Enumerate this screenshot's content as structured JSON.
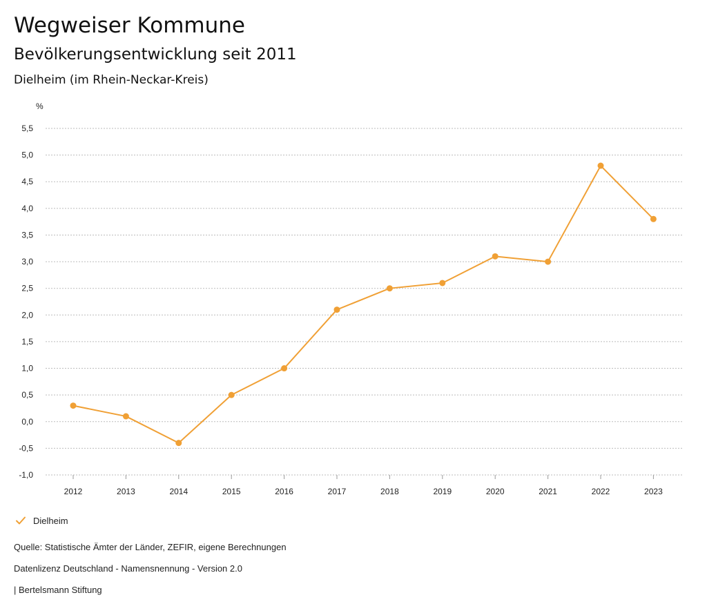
{
  "header": {
    "title": "Wegweiser Kommune",
    "subtitle": "Bevölkerungsentwicklung seit 2011",
    "region": "Dielheim (im Rhein-Neckar-Kreis)"
  },
  "colors": {
    "series": "#f0a035",
    "grid": "#bbbbbb",
    "axis": "#999999"
  },
  "chart_data": {
    "type": "line",
    "title": "Bevölkerungsentwicklung seit 2011",
    "ylabel": "%",
    "xlabel": "",
    "ylim": [
      -1.0,
      5.5
    ],
    "yticks": [
      -1.0,
      -0.5,
      0.0,
      0.5,
      1.0,
      1.5,
      2.0,
      2.5,
      3.0,
      3.5,
      4.0,
      4.5,
      5.0,
      5.5
    ],
    "ytick_labels": [
      "-1,0",
      "-0,5",
      "0,0",
      "0,5",
      "1,0",
      "1,5",
      "2,0",
      "2,5",
      "3,0",
      "3,5",
      "4,0",
      "4,5",
      "5,0",
      "5,5"
    ],
    "categories": [
      "2012",
      "2013",
      "2014",
      "2015",
      "2016",
      "2017",
      "2018",
      "2019",
      "2020",
      "2021",
      "2022",
      "2023"
    ],
    "series": [
      {
        "name": "Dielheim",
        "values": [
          0.3,
          0.1,
          -0.4,
          0.5,
          1.0,
          2.1,
          2.5,
          2.6,
          3.1,
          3.0,
          4.8,
          3.8
        ]
      }
    ],
    "grid": true,
    "legend": "bottom-left"
  },
  "legend": {
    "label": "Dielheim"
  },
  "footer": {
    "source": "Quelle: Statistische Ämter der Länder, ZEFIR, eigene Berechnungen",
    "license": "Datenlizenz Deutschland - Namensnennung - Version 2.0",
    "brand": "| Bertelsmann Stiftung"
  }
}
